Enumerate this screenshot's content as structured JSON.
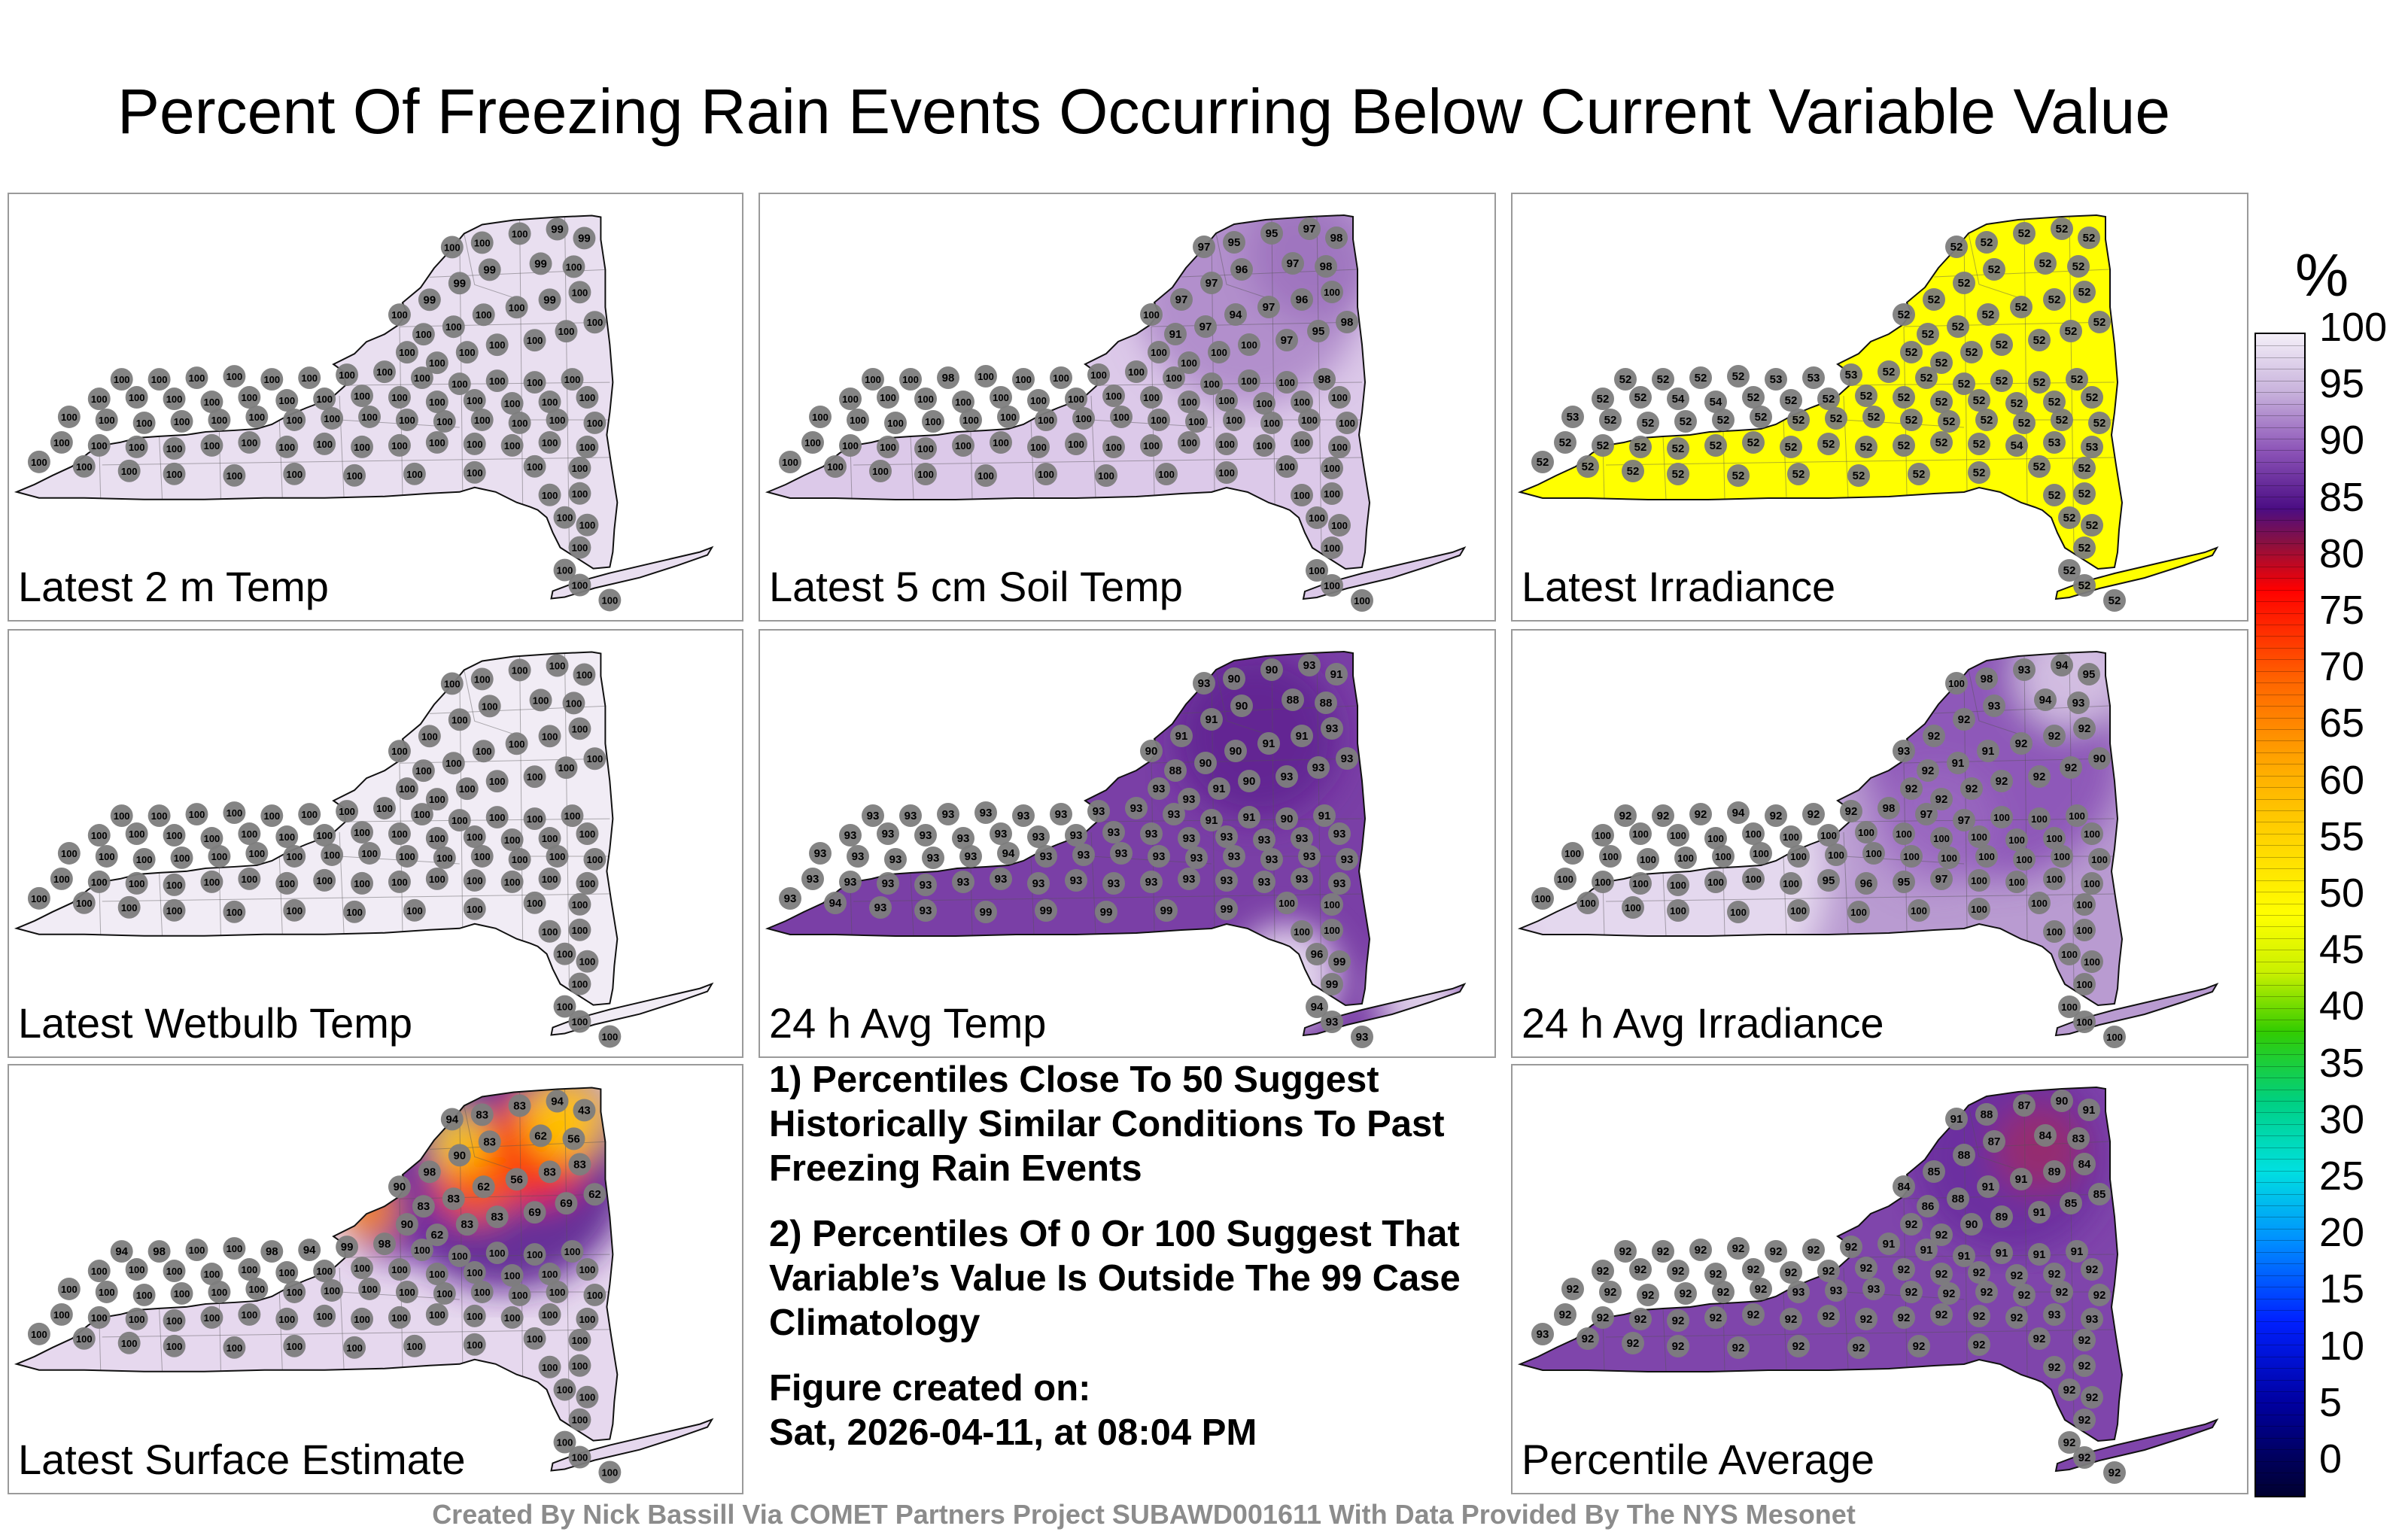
{
  "title": "Percent Of Freezing Rain Events Occurring Below Current Variable Value",
  "footer": "Created By Nick Bassill Via COMET Partners Project SUBAWD001611 With Data Provided By The NYS Mesonet",
  "notes": {
    "note1": "1) Percentiles Close To 50 Suggest Historically Similar Conditions To Past Freezing Rain Events",
    "note2": "2) Percentiles Of 0 Or 100 Suggest That Variable’s Value Is Outside The 99 Case Climatology",
    "created_label": "Figure created on:",
    "created_date": "Sat, 2026-04-11, at 08:04 PM"
  },
  "colorbar": {
    "unit": "%",
    "ticks": [
      "100",
      "95",
      "90",
      "85",
      "80",
      "75",
      "70",
      "65",
      "60",
      "55",
      "50",
      "45",
      "40",
      "35",
      "30",
      "25",
      "20",
      "15",
      "10",
      "5",
      "0"
    ]
  },
  "chart_data": [
    {
      "type": "map",
      "label": "Latest 2 m Temp",
      "fill": "#e9dff0",
      "stations": [
        100,
        100,
        100,
        99,
        99,
        99,
        100,
        99,
        99,
        99,
        100,
        100,
        100,
        100,
        100,
        99,
        100,
        100,
        100,
        100,
        100,
        100,
        100,
        100,
        100,
        100,
        100,
        100,
        100,
        100,
        100,
        100,
        100,
        100,
        100,
        100,
        100,
        100,
        100,
        100,
        100,
        100,
        100,
        100,
        100,
        100,
        100,
        100,
        100,
        100,
        100,
        100,
        100,
        100,
        100,
        100,
        100,
        100,
        100,
        100,
        100,
        100,
        100,
        100,
        100,
        100,
        100,
        100,
        100,
        100,
        100,
        100,
        100,
        100,
        100,
        100,
        100,
        100,
        100,
        100,
        100,
        100,
        100,
        100,
        100,
        100,
        100,
        100,
        100,
        100,
        100,
        100,
        100,
        100,
        100,
        100,
        100,
        100,
        100,
        100
      ]
    },
    {
      "type": "map",
      "label": "Latest 5 cm Soil Temp",
      "fill": "#dcc9e9",
      "stations": [
        97,
        95,
        95,
        97,
        98,
        97,
        98,
        96,
        97,
        97,
        100,
        91,
        97,
        94,
        97,
        96,
        100,
        98,
        95,
        97,
        100,
        100,
        100,
        100,
        100,
        100,
        98,
        100,
        100,
        100,
        100,
        100,
        100,
        100,
        100,
        100,
        98,
        100,
        100,
        100,
        100,
        100,
        100,
        100,
        100,
        100,
        100,
        100,
        100,
        100,
        100,
        100,
        100,
        100,
        100,
        100,
        100,
        100,
        100,
        100,
        100,
        100,
        100,
        100,
        100,
        100,
        100,
        100,
        100,
        100,
        100,
        100,
        100,
        100,
        100,
        100,
        100,
        100,
        100,
        100,
        100,
        100,
        100,
        100,
        100,
        100,
        100,
        100,
        100,
        100,
        100,
        100,
        100,
        100,
        100,
        100,
        100,
        100,
        100,
        100
      ]
    },
    {
      "type": "map",
      "label": "Latest Irradiance",
      "fill": "#ffff00",
      "stations": [
        52,
        52,
        52,
        52,
        52,
        52,
        52,
        52,
        52,
        52,
        52,
        52,
        52,
        52,
        52,
        52,
        52,
        52,
        52,
        52,
        52,
        52,
        52,
        52,
        52,
        52,
        52,
        52,
        53,
        53,
        53,
        52,
        52,
        52,
        52,
        52,
        52,
        52,
        52,
        54,
        54,
        52,
        52,
        52,
        52,
        52,
        52,
        52,
        52,
        52,
        52,
        53,
        52,
        52,
        52,
        52,
        52,
        52,
        52,
        52,
        52,
        52,
        52,
        52,
        52,
        52,
        52,
        52,
        52,
        52,
        52,
        52,
        52,
        52,
        52,
        52,
        52,
        52,
        54,
        53,
        53,
        52,
        52,
        52,
        52,
        52,
        52,
        52,
        52,
        52,
        52,
        52,
        52,
        52,
        52,
        52,
        52,
        52,
        52,
        52
      ]
    },
    {
      "type": "map",
      "label": "Latest Wetbulb Temp",
      "fill": "#f1ecf5",
      "stations": [
        100,
        100,
        100,
        100,
        100,
        100,
        100,
        100,
        100,
        100,
        100,
        100,
        100,
        100,
        100,
        100,
        100,
        100,
        100,
        100,
        100,
        100,
        100,
        100,
        100,
        100,
        100,
        100,
        100,
        100,
        100,
        100,
        100,
        100,
        100,
        100,
        100,
        100,
        100,
        100,
        100,
        100,
        100,
        100,
        100,
        100,
        100,
        100,
        100,
        100,
        100,
        100,
        100,
        100,
        100,
        100,
        100,
        100,
        100,
        100,
        100,
        100,
        100,
        100,
        100,
        100,
        100,
        100,
        100,
        100,
        100,
        100,
        100,
        100,
        100,
        100,
        100,
        100,
        100,
        100,
        100,
        100,
        100,
        100,
        100,
        100,
        100,
        100,
        100,
        100,
        100,
        100,
        100,
        100,
        100,
        100,
        100,
        100,
        100,
        100
      ]
    },
    {
      "type": "map",
      "label": "24 h Avg Temp",
      "fill": "#7a3fa6",
      "stations": [
        93,
        90,
        90,
        93,
        91,
        88,
        88,
        90,
        91,
        91,
        90,
        88,
        90,
        90,
        91,
        91,
        93,
        93,
        93,
        93,
        90,
        91,
        93,
        93,
        93,
        93,
        93,
        93,
        93,
        93,
        93,
        93,
        93,
        91,
        91,
        90,
        91,
        93,
        93,
        93,
        93,
        93,
        93,
        93,
        93,
        93,
        93,
        93,
        93,
        93,
        93,
        93,
        93,
        93,
        93,
        93,
        94,
        93,
        93,
        93,
        93,
        93,
        93,
        93,
        93,
        93,
        93,
        93,
        93,
        93,
        93,
        93,
        93,
        93,
        93,
        93,
        93,
        93,
        93,
        93,
        93,
        93,
        94,
        93,
        93,
        99,
        99,
        99,
        99,
        99,
        100,
        100,
        100,
        100,
        96,
        99,
        99,
        94,
        93,
        93
      ]
    },
    {
      "type": "map",
      "label": "24 h Avg Irradiance",
      "fill": "#b99bd1",
      "stations": [
        100,
        98,
        93,
        94,
        95,
        94,
        93,
        93,
        92,
        92,
        93,
        92,
        91,
        91,
        92,
        92,
        92,
        90,
        92,
        92,
        92,
        92,
        92,
        92,
        92,
        92,
        92,
        94,
        92,
        92,
        92,
        98,
        97,
        97,
        100,
        100,
        100,
        100,
        100,
        100,
        100,
        100,
        100,
        100,
        100,
        100,
        100,
        100,
        100,
        100,
        100,
        100,
        100,
        100,
        100,
        100,
        100,
        100,
        100,
        100,
        100,
        100,
        100,
        100,
        100,
        100,
        100,
        100,
        100,
        100,
        100,
        100,
        100,
        95,
        96,
        95,
        97,
        100,
        100,
        100,
        100,
        100,
        100,
        100,
        100,
        100,
        100,
        100,
        100,
        100,
        100,
        100,
        100,
        100,
        100,
        100,
        100,
        100,
        100,
        100
      ]
    },
    {
      "type": "map",
      "label": "Latest Surface Estimate",
      "fill": "#e6d8ee",
      "stations": [
        94,
        83,
        83,
        94,
        43,
        62,
        56,
        83,
        90,
        98,
        90,
        83,
        83,
        62,
        56,
        83,
        83,
        62,
        69,
        69,
        83,
        83,
        62,
        90,
        94,
        98,
        100,
        100,
        98,
        94,
        99,
        98,
        100,
        100,
        100,
        100,
        100,
        100,
        100,
        100,
        100,
        100,
        100,
        100,
        100,
        100,
        100,
        100,
        100,
        100,
        100,
        100,
        100,
        100,
        100,
        100,
        100,
        100,
        100,
        100,
        100,
        100,
        100,
        100,
        100,
        100,
        100,
        100,
        100,
        100,
        100,
        100,
        100,
        100,
        100,
        100,
        100,
        100,
        100,
        100,
        100,
        100,
        100,
        100,
        100,
        100,
        100,
        100,
        100,
        100,
        100,
        100,
        100,
        100,
        100,
        100,
        100,
        100,
        100,
        100
      ]
    },
    {
      "type": "map",
      "label": "Percentile Average",
      "fill": "#7f45ab",
      "stations": [
        91,
        88,
        87,
        90,
        91,
        84,
        83,
        87,
        88,
        85,
        84,
        86,
        88,
        91,
        91,
        89,
        84,
        85,
        85,
        91,
        89,
        90,
        92,
        92,
        92,
        92,
        92,
        92,
        92,
        92,
        92,
        91,
        91,
        91,
        91,
        91,
        91,
        92,
        92,
        92,
        92,
        92,
        92,
        92,
        92,
        92,
        92,
        92,
        92,
        92,
        92,
        92,
        92,
        92,
        92,
        92,
        92,
        93,
        93,
        93,
        92,
        92,
        92,
        92,
        92,
        92,
        92,
        92,
        92,
        92,
        92,
        92,
        92,
        92,
        92,
        92,
        92,
        92,
        92,
        93,
        93,
        93,
        92,
        92,
        92,
        92,
        92,
        92,
        92,
        92,
        92,
        92,
        92,
        92,
        92,
        92,
        92,
        92,
        92,
        92
      ]
    }
  ]
}
